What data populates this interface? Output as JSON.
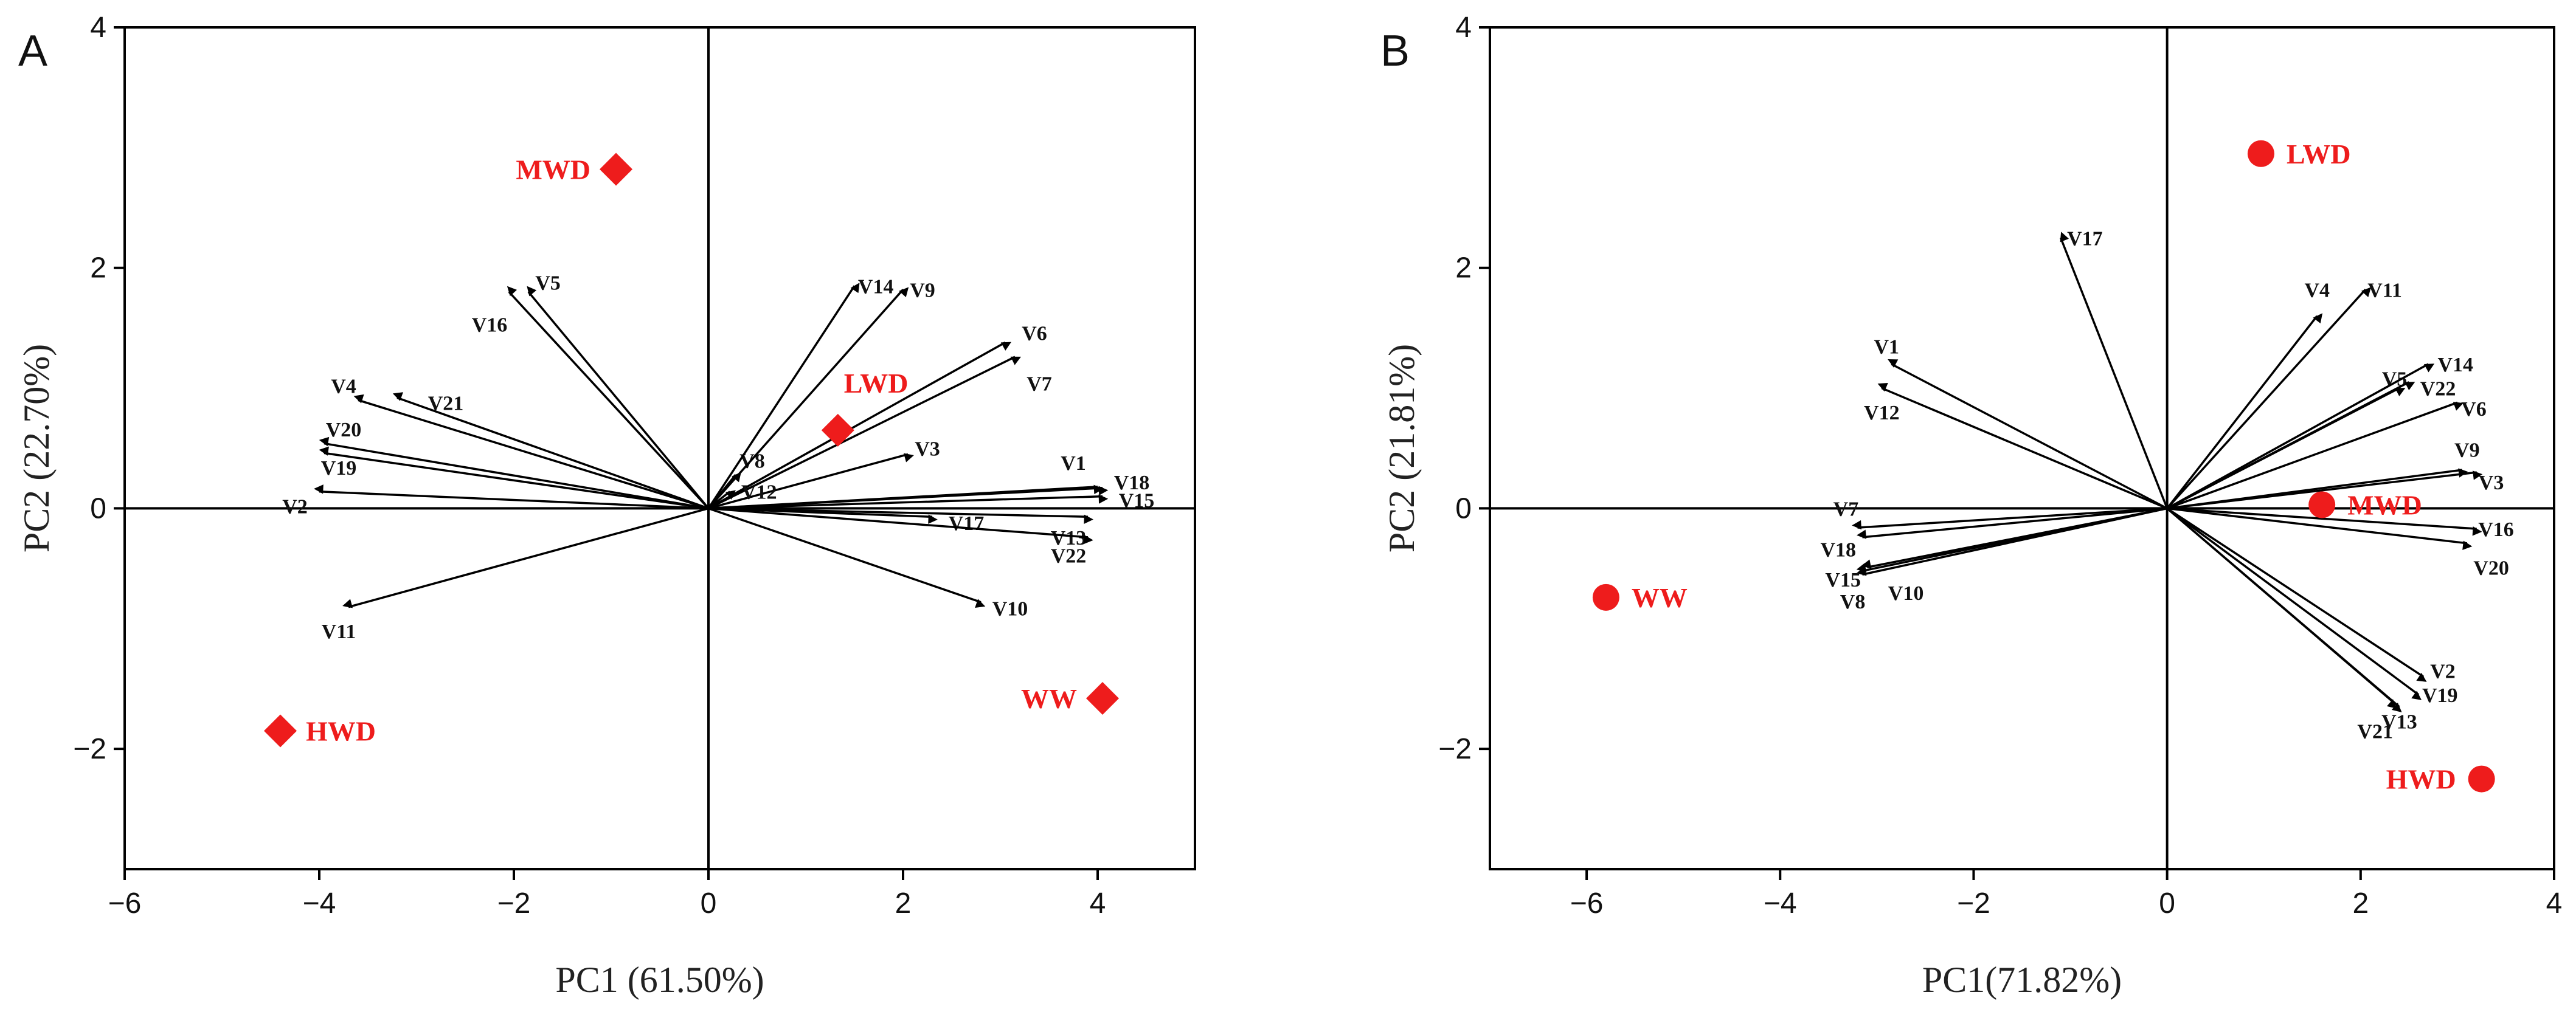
{
  "chart_data": [
    {
      "type": "scatter",
      "subtype": "pca-biplot",
      "panel": "A",
      "xlabel": "PC1 (61.50%)",
      "ylabel": "PC2 (22.70%)",
      "xlim": [
        -6,
        5
      ],
      "ylim": [
        -3,
        4
      ],
      "xticks": [
        -6,
        -4,
        -2,
        0,
        2,
        4
      ],
      "yticks": [
        -2,
        0,
        2,
        4
      ],
      "xtick_labels": [
        "−6",
        "−4",
        "−2",
        "0",
        "2",
        "4"
      ],
      "ytick_labels": [
        "−2",
        "0",
        "2",
        "4"
      ],
      "marker": "diamond",
      "marker_color": "#ee1c1c",
      "points": [
        {
          "name": "MWD",
          "x": -0.95,
          "y": 2.82,
          "label_side": "left"
        },
        {
          "name": "LWD",
          "x": 1.33,
          "y": 0.65,
          "label_side": "above-right"
        },
        {
          "name": "WW",
          "x": 4.05,
          "y": -1.58,
          "label_side": "left"
        },
        {
          "name": "HWD",
          "x": -4.4,
          "y": -1.85,
          "label_side": "right"
        }
      ],
      "loadings": [
        {
          "name": "V1",
          "x": 4.0,
          "y": 0.18,
          "label_dx": -0.25,
          "label_dy": 0.2
        },
        {
          "name": "V2",
          "x": -4.0,
          "y": 0.14,
          "label_dx": -0.25,
          "label_dy": -0.12
        },
        {
          "name": "V3",
          "x": 2.05,
          "y": 0.45,
          "label_dx": 0.2,
          "label_dy": 0.05
        },
        {
          "name": "V4",
          "x": -3.6,
          "y": 0.9,
          "label_dx": -0.15,
          "label_dy": 0.12
        },
        {
          "name": "V5",
          "x": -1.85,
          "y": 1.8,
          "label_dx": 0.2,
          "label_dy": 0.08
        },
        {
          "name": "V6",
          "x": 3.05,
          "y": 1.38,
          "label_dx": 0.3,
          "label_dy": 0.08
        },
        {
          "name": "V7",
          "x": 3.15,
          "y": 1.26,
          "label_dx": 0.25,
          "label_dy": -0.22
        },
        {
          "name": "V8",
          "x": 0.28,
          "y": 0.28,
          "label_dx": 0.17,
          "label_dy": 0.12
        },
        {
          "name": "V9",
          "x": 2.0,
          "y": 1.82,
          "label_dx": 0.2,
          "label_dy": 0.0
        },
        {
          "name": "V10",
          "x": 2.8,
          "y": -0.78,
          "label_dx": 0.3,
          "label_dy": -0.05
        },
        {
          "name": "V11",
          "x": -3.7,
          "y": -0.82,
          "label_dx": -0.1,
          "label_dy": -0.2
        },
        {
          "name": "V12",
          "x": 0.22,
          "y": 0.14,
          "label_dx": 0.3,
          "label_dy": 0.0
        },
        {
          "name": "V13",
          "x": 3.9,
          "y": -0.07,
          "label_dx": -0.2,
          "label_dy": -0.17
        },
        {
          "name": "V14",
          "x": 1.5,
          "y": 1.85,
          "label_dx": 0.22,
          "label_dy": 0.0
        },
        {
          "name": "V15",
          "x": 4.05,
          "y": 0.1,
          "label_dx": 0.35,
          "label_dy": -0.03
        },
        {
          "name": "V16",
          "x": -2.05,
          "y": 1.8,
          "label_dx": -0.2,
          "label_dy": -0.27
        },
        {
          "name": "V17",
          "x": 2.3,
          "y": -0.07,
          "label_dx": 0.35,
          "label_dy": -0.05
        },
        {
          "name": "V18",
          "x": 4.05,
          "y": 0.17,
          "label_dx": 0.3,
          "label_dy": 0.05
        },
        {
          "name": "V19",
          "x": -3.95,
          "y": 0.46,
          "label_dx": 0.15,
          "label_dy": -0.12
        },
        {
          "name": "V20",
          "x": -3.95,
          "y": 0.54,
          "label_dx": 0.2,
          "label_dy": 0.12
        },
        {
          "name": "V21",
          "x": -3.2,
          "y": 0.92,
          "label_dx": 0.5,
          "label_dy": -0.04
        },
        {
          "name": "V22",
          "x": 3.9,
          "y": -0.24,
          "label_dx": -0.2,
          "label_dy": -0.15
        }
      ]
    },
    {
      "type": "scatter",
      "subtype": "pca-biplot",
      "panel": "B",
      "xlabel": "PC1(71.82%)",
      "ylabel": "PC2 (21.81%)",
      "xlim": [
        -7,
        4
      ],
      "ylim": [
        -3,
        4
      ],
      "xticks": [
        -6,
        -4,
        -2,
        0,
        2,
        4
      ],
      "yticks": [
        -2,
        0,
        2,
        4
      ],
      "xtick_labels": [
        "−6",
        "−4",
        "−2",
        "0",
        "2",
        "4"
      ],
      "ytick_labels": [
        "−2",
        "0",
        "2",
        "4"
      ],
      "marker": "circle",
      "marker_color": "#ee1c1c",
      "points": [
        {
          "name": "LWD",
          "x": 0.97,
          "y": 2.95,
          "label_side": "right"
        },
        {
          "name": "MWD",
          "x": 1.6,
          "y": 0.03,
          "label_side": "right"
        },
        {
          "name": "WW",
          "x": -5.8,
          "y": -0.74,
          "label_side": "right"
        },
        {
          "name": "HWD",
          "x": 3.25,
          "y": -2.25,
          "label_side": "left"
        }
      ],
      "loadings": [
        {
          "name": "V1",
          "x": -2.85,
          "y": 1.2,
          "label_dx": -0.05,
          "label_dy": 0.15
        },
        {
          "name": "V2",
          "x": 2.65,
          "y": -1.4,
          "label_dx": 0.2,
          "label_dy": 0.05
        },
        {
          "name": "V3",
          "x": 3.2,
          "y": 0.3,
          "label_dx": 0.15,
          "label_dy": -0.08
        },
        {
          "name": "V4",
          "x": 1.55,
          "y": 1.6,
          "label_dx": 0.0,
          "label_dy": 0.22
        },
        {
          "name": "V5",
          "x": 2.4,
          "y": 1.0,
          "label_dx": -0.05,
          "label_dy": 0.08
        },
        {
          "name": "V6",
          "x": 3.0,
          "y": 0.88,
          "label_dx": 0.17,
          "label_dy": -0.05
        },
        {
          "name": "V7",
          "x": -3.2,
          "y": -0.16,
          "label_dx": -0.12,
          "label_dy": 0.16
        },
        {
          "name": "V8",
          "x": -3.15,
          "y": -0.52,
          "label_dx": -0.1,
          "label_dy": -0.25
        },
        {
          "name": "V9",
          "x": 3.05,
          "y": 0.32,
          "label_dx": 0.05,
          "label_dy": 0.17
        },
        {
          "name": "V10",
          "x": -3.15,
          "y": -0.55,
          "label_dx": 0.45,
          "label_dy": -0.15
        },
        {
          "name": "V11",
          "x": 2.05,
          "y": 1.82,
          "label_dx": 0.2,
          "label_dy": 0.0
        },
        {
          "name": "V12",
          "x": -2.95,
          "y": 1.0,
          "label_dx": 0.0,
          "label_dy": -0.2
        },
        {
          "name": "V13",
          "x": 2.35,
          "y": -1.62,
          "label_dx": 0.05,
          "label_dy": -0.15
        },
        {
          "name": "V14",
          "x": 2.7,
          "y": 1.2,
          "label_dx": 0.28,
          "label_dy": 0.0
        },
        {
          "name": "V15",
          "x": -3.1,
          "y": -0.49,
          "label_dx": -0.25,
          "label_dy": -0.1
        },
        {
          "name": "V16",
          "x": 3.2,
          "y": -0.17,
          "label_dx": 0.2,
          "label_dy": 0.0
        },
        {
          "name": "V17",
          "x": -1.1,
          "y": 2.25,
          "label_dx": 0.25,
          "label_dy": 0.0
        },
        {
          "name": "V18",
          "x": -3.15,
          "y": -0.24,
          "label_dx": -0.25,
          "label_dy": -0.1
        },
        {
          "name": "V19",
          "x": 2.6,
          "y": -1.55,
          "label_dx": 0.22,
          "label_dy": 0.0
        },
        {
          "name": "V20",
          "x": 3.1,
          "y": -0.29,
          "label_dx": 0.25,
          "label_dy": -0.2
        },
        {
          "name": "V21",
          "x": 2.4,
          "y": -1.65,
          "label_dx": -0.25,
          "label_dy": -0.2
        },
        {
          "name": "V22",
          "x": 2.5,
          "y": 1.05,
          "label_dx": 0.3,
          "label_dy": -0.05
        }
      ]
    }
  ]
}
